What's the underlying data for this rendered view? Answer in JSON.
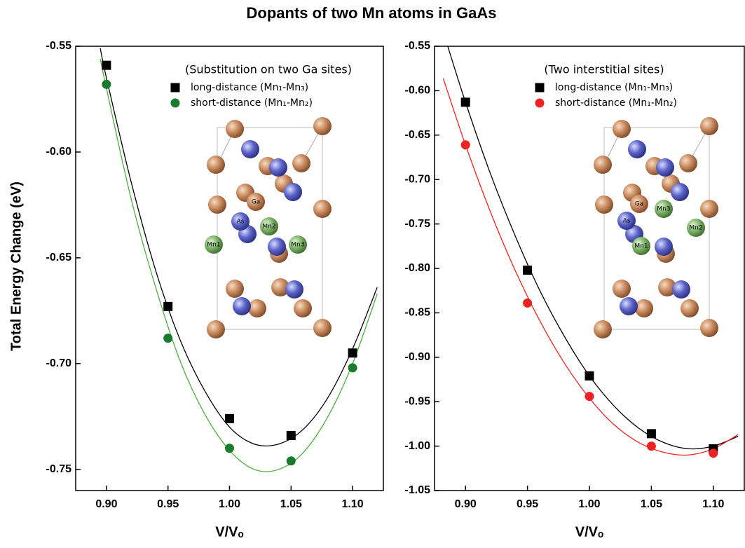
{
  "title": "Dopants of two Mn atoms in GaAs",
  "y_label": "Total Energy Change (eV)",
  "chart_data": [
    {
      "type": "scatter",
      "annotation": "(Substitution on two Ga sites)",
      "x_label": "V/Vₒ",
      "xlim": [
        0.875,
        1.125
      ],
      "ylim": [
        -0.76,
        -0.55
      ],
      "xticks": [
        {
          "value": 0.9,
          "label": "0.90"
        },
        0.95,
        {
          "value": 1.0,
          "label": "1.00"
        },
        1.05,
        {
          "value": 1.1,
          "label": "1.10"
        }
      ],
      "yticks": [
        -0.55,
        {
          "value": -0.6,
          "label": "-0.60"
        },
        -0.65,
        {
          "value": -0.7,
          "label": "-0.70"
        },
        -0.75
      ],
      "series": [
        {
          "name": "long-distance (Mn₁-Mn₃)",
          "color": "#000000",
          "marker": "square",
          "x": [
            0.9,
            0.95,
            1.0,
            1.05,
            1.1
          ],
          "values": [
            -0.559,
            -0.673,
            -0.726,
            -0.734,
            -0.695
          ]
        },
        {
          "name": "short-distance (Mn₁-Mn₂)",
          "color": "#1a7a2e",
          "marker": "circle",
          "x": [
            0.9,
            0.95,
            1.0,
            1.05,
            1.1
          ],
          "values": [
            -0.568,
            -0.688,
            -0.74,
            -0.746,
            -0.702
          ]
        }
      ],
      "fits": [
        {
          "color": "#000000",
          "x": [
            0.895,
            0.9,
            0.92,
            0.94,
            0.96,
            0.98,
            1.0,
            1.02,
            1.04,
            1.06,
            1.08,
            1.1,
            1.12
          ],
          "values": [
            -0.551,
            -0.565,
            -0.614,
            -0.656,
            -0.689,
            -0.713,
            -0.73,
            -0.738,
            -0.738,
            -0.731,
            -0.716,
            -0.693,
            -0.664
          ]
        },
        {
          "color": "#4caf3c",
          "x": [
            0.895,
            0.9,
            0.92,
            0.94,
            0.96,
            0.98,
            1.0,
            1.02,
            1.04,
            1.06,
            1.08,
            1.1,
            1.12
          ],
          "values": [
            -0.556,
            -0.57,
            -0.622,
            -0.664,
            -0.699,
            -0.724,
            -0.741,
            -0.75,
            -0.75,
            -0.742,
            -0.725,
            -0.7,
            -0.667
          ]
        }
      ],
      "inset_labels": [
        "Ga",
        "As",
        "Mn2",
        "Mn1",
        "Mn3"
      ]
    },
    {
      "type": "scatter",
      "annotation": "(Two interstitial sites)",
      "x_label": "V/Vₒ",
      "xlim": [
        0.875,
        1.125
      ],
      "ylim": [
        -1.05,
        -0.55
      ],
      "xticks": [
        {
          "value": 0.9,
          "label": "0.90"
        },
        0.95,
        {
          "value": 1.0,
          "label": "1.00"
        },
        1.05,
        {
          "value": 1.1,
          "label": "1.10"
        }
      ],
      "yticks": [
        -0.55,
        {
          "value": -0.6,
          "label": "-0.60"
        },
        -0.65,
        {
          "value": -0.7,
          "label": "-0.70"
        },
        -0.75,
        {
          "value": -0.8,
          "label": "-0.80"
        },
        -0.85,
        {
          "value": -0.9,
          "label": "-0.90"
        },
        -0.95,
        {
          "value": -1.0,
          "label": "-1.00"
        },
        -1.05
      ],
      "series": [
        {
          "name": "long-distance (Mn₁-Mn₃)",
          "color": "#000000",
          "marker": "square",
          "x": [
            0.9,
            0.95,
            1.0,
            1.05,
            1.1
          ],
          "values": [
            -0.613,
            -0.802,
            -0.921,
            -0.986,
            -1.003
          ]
        },
        {
          "name": "short-distance (Mn₁-Mn₂)",
          "color": "#ee2222",
          "marker": "circle",
          "x": [
            0.9,
            0.95,
            1.0,
            1.05,
            1.1
          ],
          "values": [
            -0.661,
            -0.839,
            -0.944,
            -1.0,
            -1.008
          ]
        }
      ],
      "fits": [
        {
          "color": "#000000",
          "x": [
            0.885,
            0.9,
            0.92,
            0.94,
            0.96,
            0.98,
            1.0,
            1.02,
            1.04,
            1.06,
            1.08,
            1.1,
            1.12
          ],
          "values": [
            -0.547,
            -0.613,
            -0.693,
            -0.763,
            -0.825,
            -0.877,
            -0.921,
            -0.955,
            -0.98,
            -0.996,
            -1.003,
            -1.0,
            -0.989
          ]
        },
        {
          "color": "#ee2222",
          "x": [
            0.882,
            0.9,
            0.92,
            0.94,
            0.96,
            0.98,
            1.0,
            1.02,
            1.04,
            1.06,
            1.08,
            1.1,
            1.12
          ],
          "values": [
            -0.586,
            -0.661,
            -0.736,
            -0.802,
            -0.859,
            -0.907,
            -0.946,
            -0.976,
            -0.996,
            -1.007,
            -1.01,
            -1.003,
            -0.987
          ]
        }
      ],
      "inset_labels": [
        "Ga",
        "As",
        "Mn3",
        "Mn1",
        "Mn2"
      ]
    }
  ]
}
